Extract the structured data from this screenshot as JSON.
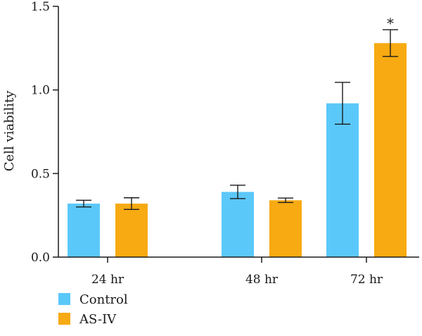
{
  "chart_data": {
    "type": "bar",
    "title": "",
    "xlabel": "",
    "ylabel": "Cell viability",
    "ylim": [
      0,
      1.5
    ],
    "yticks": [
      "0.0",
      "0.5",
      "1.0",
      "1.5"
    ],
    "categories": [
      "24 hr",
      "48 hr",
      "72 hr"
    ],
    "series": [
      {
        "name": "Control",
        "color": "#5BC8FA",
        "values": [
          0.32,
          0.39,
          0.92
        ],
        "errors": [
          0.02,
          0.04,
          0.125
        ]
      },
      {
        "name": "AS-IV",
        "color": "#F7AA12",
        "values": [
          0.32,
          0.34,
          1.28
        ],
        "errors": [
          0.035,
          0.013,
          0.08
        ]
      }
    ],
    "annotations": [
      {
        "text": "*",
        "category": "72 hr",
        "series": "AS-IV"
      }
    ],
    "grid": false,
    "legend": "bottom-left"
  }
}
